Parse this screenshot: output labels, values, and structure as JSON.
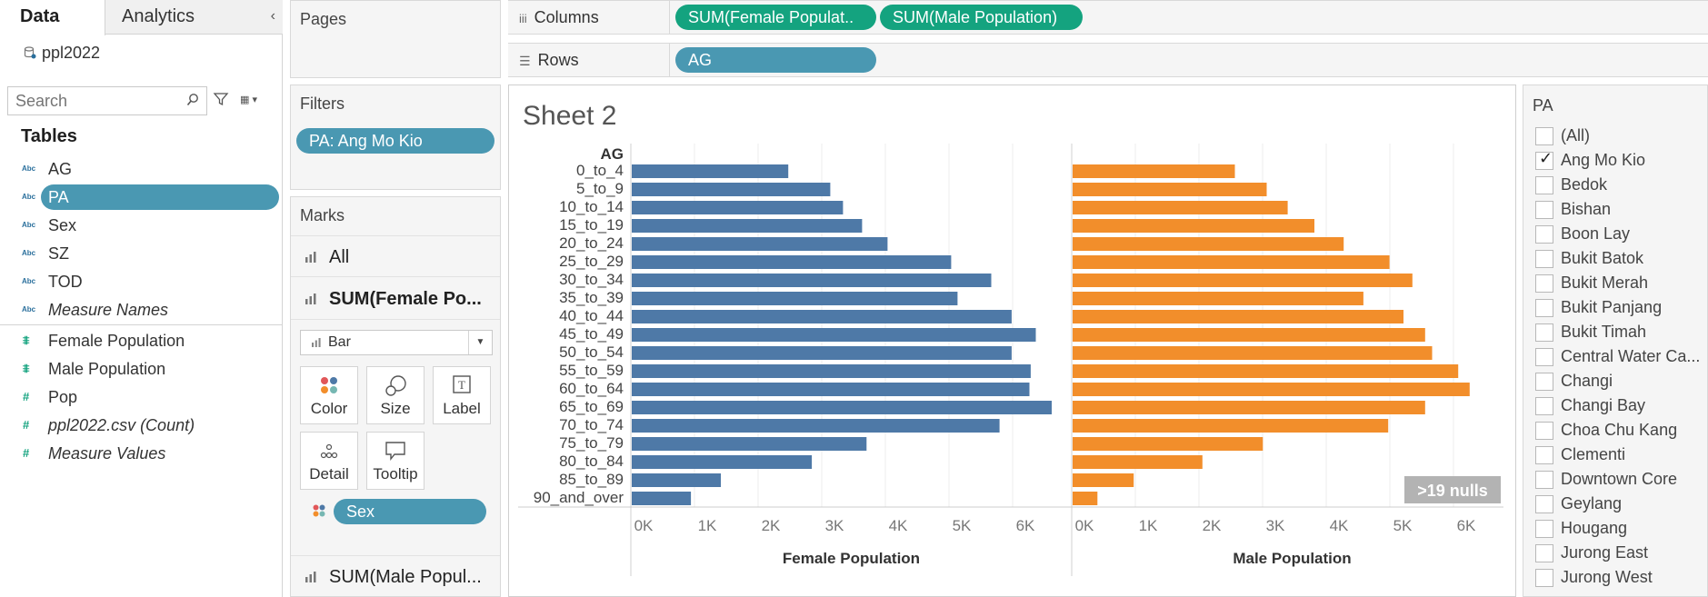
{
  "left_pane": {
    "tabs": {
      "data": "Data",
      "analytics": "Analytics"
    },
    "datasource": "ppl2022",
    "search_placeholder": "Search",
    "tables_heading": "Tables",
    "dimension_type": "Abc",
    "dimensions": [
      "AG",
      "PA",
      "Sex",
      "SZ",
      "TOD",
      "Measure Names"
    ],
    "selected_dimension": "PA",
    "measures": [
      "Female Population",
      "Male Population",
      "Pop",
      "ppl2022.csv (Count)",
      "Measure Values"
    ]
  },
  "pages": {
    "title": "Pages"
  },
  "filters": {
    "title": "Filters",
    "pill": "PA: Ang Mo Kio"
  },
  "marks": {
    "title": "Marks",
    "rows": [
      "All",
      "SUM(Female Po..."
    ],
    "mark_type": "Bar",
    "buttons": {
      "color": "Color",
      "size": "Size",
      "label": "Label",
      "detail": "Detail",
      "tooltip": "Tooltip"
    },
    "color_pill": "Sex",
    "bottom_row": "SUM(Male Popul..."
  },
  "shelves": {
    "columns_label": "Columns",
    "columns_pills": [
      "SUM(Female Populat..",
      "SUM(Male Population)"
    ],
    "rows_label": "Rows",
    "rows_pill": "AG"
  },
  "sheet": {
    "title": "Sheet 2",
    "nulls_badge": ">19 nulls"
  },
  "colors": {
    "female": "#4e79a7",
    "male": "#f28e2b",
    "pill_blue": "#4a98b2",
    "pill_green": "#14a37f"
  },
  "chart_data": {
    "type": "bar",
    "row_header": "AG",
    "categories": [
      "0_to_4",
      "5_to_9",
      "10_to_14",
      "15_to_19",
      "20_to_24",
      "25_to_29",
      "30_to_34",
      "35_to_39",
      "40_to_44",
      "45_to_49",
      "50_to_54",
      "55_to_59",
      "60_to_64",
      "65_to_69",
      "70_to_74",
      "75_to_79",
      "80_to_84",
      "85_to_89",
      "90_and_over"
    ],
    "series": [
      {
        "name": "Female Population",
        "xlabel": "Female Population",
        "values": [
          2460,
          3120,
          3320,
          3620,
          4020,
          5020,
          5650,
          5120,
          5970,
          6350,
          5970,
          6270,
          6250,
          6600,
          5780,
          3690,
          2830,
          1400,
          930
        ]
      },
      {
        "name": "Male Population",
        "xlabel": "Male Population",
        "values": [
          2550,
          3050,
          3380,
          3800,
          4260,
          4980,
          5340,
          4570,
          5200,
          5540,
          5650,
          6060,
          6240,
          5540,
          4960,
          2990,
          2040,
          960,
          390
        ]
      }
    ],
    "xticks": [
      "0K",
      "1K",
      "2K",
      "3K",
      "4K",
      "5K",
      "6K"
    ],
    "xlim": [
      0,
      6800
    ],
    "grid": true
  },
  "pa_filter": {
    "title": "PA",
    "items": [
      "(All)",
      "Ang Mo Kio",
      "Bedok",
      "Bishan",
      "Boon Lay",
      "Bukit Batok",
      "Bukit Merah",
      "Bukit Panjang",
      "Bukit Timah",
      "Central Water Ca...",
      "Changi",
      "Changi Bay",
      "Choa Chu Kang",
      "Clementi",
      "Downtown Core",
      "Geylang",
      "Hougang",
      "Jurong East",
      "Jurong West"
    ],
    "checked": [
      "Ang Mo Kio"
    ]
  }
}
